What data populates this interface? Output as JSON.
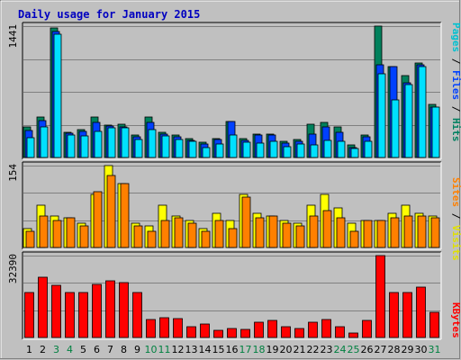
{
  "title": "Daily usage for January 2015",
  "colors": {
    "background": "#c0c0c0",
    "panel": "#c0c0c0",
    "grid": "#808080",
    "hits": "#00805c",
    "files": "#0040ff",
    "pages": "#00e0ff",
    "visits": "#ffff00",
    "sites": "#ff8000",
    "kbytes": "#ff0000",
    "weekday_label": "#000000",
    "weekend_label": "#008040"
  },
  "legend": {
    "top": [
      {
        "text": "Pages",
        "color": "#00c0d0"
      },
      {
        "text": " / ",
        "color": "#000000"
      },
      {
        "text": "Files",
        "color": "#0040ff"
      },
      {
        "text": " / ",
        "color": "#000000"
      },
      {
        "text": "Hits",
        "color": "#008060"
      }
    ],
    "middle": [
      {
        "text": "Sites",
        "color": "#ff8000"
      },
      {
        "text": " / ",
        "color": "#000000"
      },
      {
        "text": "Visits",
        "color": "#e0e000"
      }
    ],
    "bottom": [
      {
        "text": "KBytes",
        "color": "#ff0000"
      }
    ]
  },
  "chart_data": {
    "type": "bar",
    "title": "Daily usage for January 2015",
    "categories": [
      "1",
      "2",
      "3",
      "4",
      "5",
      "6",
      "7",
      "8",
      "9",
      "10",
      "11",
      "12",
      "13",
      "14",
      "15",
      "16",
      "17",
      "18",
      "19",
      "20",
      "21",
      "22",
      "23",
      "24",
      "25",
      "26",
      "27",
      "28",
      "29",
      "30",
      "31"
    ],
    "weekend_days": [
      3,
      4,
      10,
      11,
      17,
      18,
      24,
      25,
      31
    ],
    "panels": [
      {
        "name": "pages-files-hits",
        "ymax_label": "1441",
        "ymax": 1441,
        "series": [
          {
            "name": "Hits",
            "values": [
              340,
              440,
              1420,
              280,
              310,
              440,
              360,
              370,
              250,
              440,
              280,
              250,
              210,
              170,
              210,
              390,
              210,
              260,
              260,
              180,
              200,
              370,
              380,
              340,
              140,
              250,
              1441,
              1000,
              900,
              1040,
              580
            ]
          },
          {
            "name": "Files",
            "values": [
              300,
              400,
              1380,
              270,
              290,
              380,
              350,
              340,
              230,
              380,
              260,
              230,
              190,
              150,
              200,
              390,
              190,
              250,
              250,
              160,
              180,
              260,
              340,
              280,
              110,
              230,
              1020,
              1000,
              820,
              1020,
              550
            ]
          },
          {
            "name": "Pages",
            "values": [
              220,
              340,
              1350,
              250,
              240,
              290,
              330,
              330,
              200,
              310,
              240,
              200,
              180,
              110,
              150,
              250,
              170,
              160,
              180,
              120,
              150,
              140,
              190,
              180,
              100,
              180,
              920,
              630,
              800,
              1000,
              550
            ]
          }
        ]
      },
      {
        "name": "visits-sites",
        "ymax_label": "154",
        "ymax": 154,
        "series": [
          {
            "name": "Visits",
            "values": [
              35,
              80,
              60,
              55,
              45,
              100,
              154,
              120,
              45,
              40,
              80,
              60,
              50,
              35,
              65,
              50,
              100,
              65,
              60,
              50,
              45,
              80,
              100,
              75,
              45,
              50,
              50,
              65,
              80,
              65,
              60
            ]
          },
          {
            "name": "Sites",
            "values": [
              30,
              60,
              50,
              55,
              40,
              105,
              135,
              120,
              40,
              30,
              50,
              55,
              45,
              30,
              50,
              35,
              95,
              55,
              60,
              45,
              40,
              60,
              70,
              55,
              30,
              50,
              50,
              55,
              60,
              60,
              55
            ]
          }
        ]
      },
      {
        "name": "kbytes",
        "ymax_label": "32390",
        "ymax": 32390,
        "series": [
          {
            "name": "KBytes",
            "values": [
              17800,
              23700,
              20800,
              17800,
              17800,
              21100,
              22400,
              21700,
              17800,
              7000,
              7800,
              7400,
              4300,
              5200,
              3000,
              3700,
              3300,
              6000,
              6800,
              4300,
              3700,
              6000,
              7000,
              4300,
              1800,
              6700,
              32390,
              17800,
              17800,
              19900,
              10000
            ]
          }
        ]
      }
    ]
  }
}
